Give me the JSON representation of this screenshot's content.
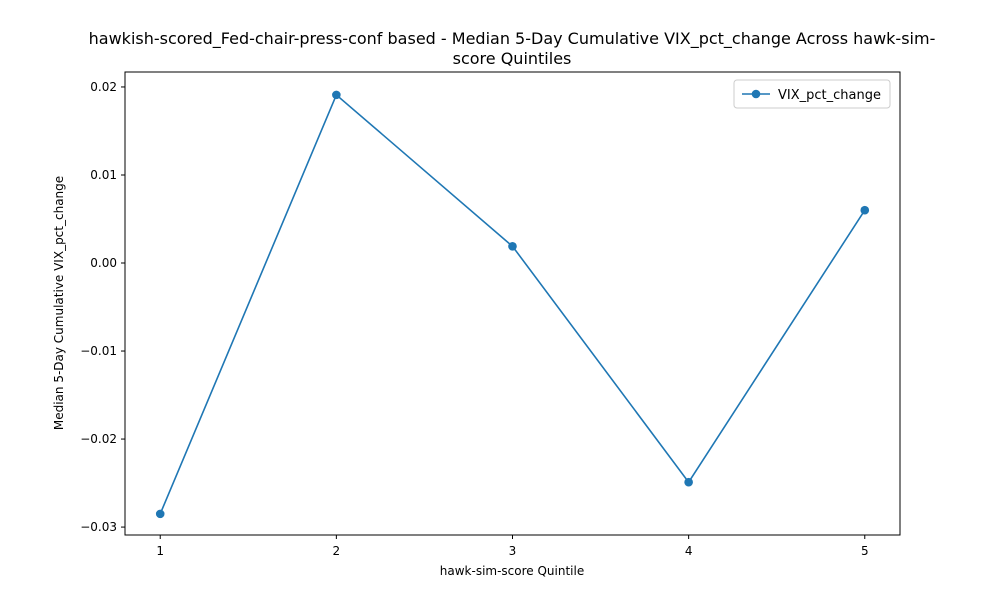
{
  "chart_data": {
    "type": "line",
    "title_lines": [
      "hawkish-scored_Fed-chair-press-conf based - Median 5-Day Cumulative VIX_pct_change Across hawk-sim-",
      "score Quintiles"
    ],
    "xlabel": "hawk-sim-score Quintile",
    "ylabel": "Median 5-Day Cumulative VIX_pct_change",
    "x": [
      1,
      2,
      3,
      4,
      5
    ],
    "x_tick_labels": [
      "1",
      "2",
      "3",
      "4",
      "5"
    ],
    "xlim": [
      0.8,
      5.2
    ],
    "ylim": [
      -0.0309,
      0.0217
    ],
    "y_ticks": [
      -0.03,
      -0.02,
      -0.01,
      0.0,
      0.01,
      0.02
    ],
    "y_tick_labels": [
      "−0.03",
      "−0.02",
      "−0.01",
      "0.00",
      "0.01",
      "0.02"
    ],
    "series": [
      {
        "name": "VIX_pct_change",
        "color": "#1f77b4",
        "marker": "circle",
        "values": [
          -0.0285,
          0.0191,
          0.0019,
          -0.0249,
          0.006
        ]
      }
    ],
    "legend": {
      "position": "upper-right"
    },
    "grid": false
  }
}
